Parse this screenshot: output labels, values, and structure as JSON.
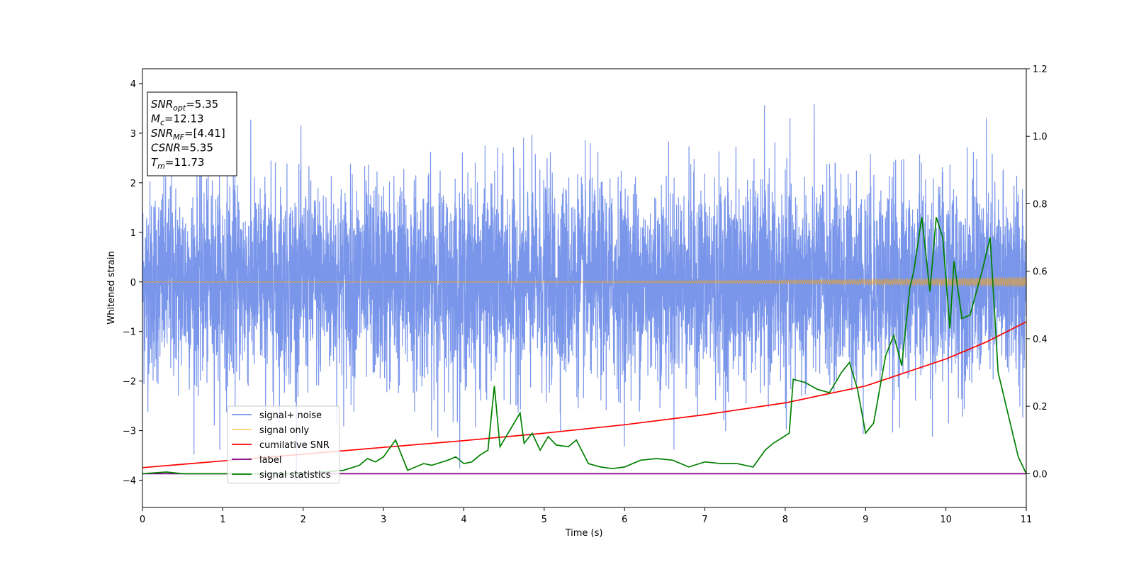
{
  "chart_data": {
    "type": "line",
    "title": "",
    "xlabel": "Time (s)",
    "ylabel": "Whitened strain",
    "xlim": [
      0,
      11
    ],
    "ylim": [
      -4.55,
      4.3
    ],
    "y2lim": [
      -0.1,
      1.2
    ],
    "xticks": [
      0,
      1,
      2,
      3,
      4,
      5,
      6,
      7,
      8,
      9,
      10,
      11
    ],
    "yticks": [
      -4,
      -3,
      -2,
      -1,
      0,
      1,
      2,
      3,
      4
    ],
    "y2ticks": [
      "0.0",
      "0.2",
      "0.4",
      "0.6",
      "0.8",
      "1.0",
      "1.2"
    ],
    "y2tick_values": [
      0.0,
      0.2,
      0.4,
      0.6,
      0.8,
      1.0,
      1.2
    ],
    "grid": false,
    "legend_position": "lower-left",
    "annotation": {
      "lines": [
        {
          "sym": "SNR",
          "sub": "opt",
          "val": "=5.35"
        },
        {
          "sym": "M",
          "sub": "c",
          "val": "=12.13"
        },
        {
          "sym": "SNR",
          "sub": "MF",
          "val": "=[4.41]"
        },
        {
          "sym": "CSNR",
          "sub": "",
          "val": "=5.35"
        },
        {
          "sym": "T",
          "sub": "m",
          "val": "=11.73"
        }
      ]
    },
    "series": [
      {
        "name": "signal+ noise",
        "color": "#4169e1",
        "axis": "left",
        "kind": "noise",
        "std": 1.0,
        "range": [
          -4.15,
          3.92
        ]
      },
      {
        "name": "signal only",
        "color": "#ffa500",
        "axis": "left",
        "kind": "chirp",
        "amp_start": 0.01,
        "amp_end": 0.1
      },
      {
        "name": "cumilative SNR",
        "color": "#ff0000",
        "axis": "right",
        "x": [
          0,
          1,
          2,
          3,
          4,
          5,
          6,
          7,
          8,
          9,
          9.5,
          10,
          10.5,
          11
        ],
        "values": [
          0.018,
          0.038,
          0.058,
          0.078,
          0.098,
          0.12,
          0.145,
          0.175,
          0.21,
          0.26,
          0.3,
          0.34,
          0.39,
          0.45
        ]
      },
      {
        "name": "label",
        "color": "#800080",
        "axis": "right",
        "x": [
          0,
          11
        ],
        "values": [
          0.0,
          0.0
        ]
      },
      {
        "name": "signal statistics",
        "color": "#008000",
        "axis": "right",
        "x": [
          0,
          0.3,
          0.5,
          1.0,
          1.5,
          2.0,
          2.5,
          2.7,
          2.8,
          2.9,
          3.0,
          3.15,
          3.3,
          3.4,
          3.5,
          3.6,
          3.8,
          3.9,
          4.0,
          4.1,
          4.2,
          4.3,
          4.38,
          4.45,
          4.6,
          4.7,
          4.75,
          4.85,
          4.95,
          5.05,
          5.15,
          5.3,
          5.4,
          5.55,
          5.7,
          5.85,
          6.0,
          6.2,
          6.4,
          6.6,
          6.8,
          7.0,
          7.2,
          7.4,
          7.6,
          7.75,
          7.85,
          8.05,
          8.1,
          8.25,
          8.4,
          8.55,
          8.7,
          8.8,
          8.9,
          9.0,
          9.1,
          9.25,
          9.35,
          9.45,
          9.55,
          9.6,
          9.7,
          9.8,
          9.88,
          9.96,
          10.05,
          10.1,
          10.2,
          10.3,
          10.45,
          10.55,
          10.65,
          10.75,
          10.9,
          11.0
        ],
        "values": [
          0.0,
          0.005,
          0.0,
          0.0,
          0.0,
          0.0,
          0.01,
          0.025,
          0.045,
          0.035,
          0.05,
          0.1,
          0.01,
          0.02,
          0.03,
          0.025,
          0.04,
          0.05,
          0.03,
          0.035,
          0.055,
          0.07,
          0.26,
          0.08,
          0.14,
          0.18,
          0.09,
          0.12,
          0.07,
          0.11,
          0.085,
          0.08,
          0.1,
          0.03,
          0.02,
          0.015,
          0.02,
          0.04,
          0.045,
          0.04,
          0.02,
          0.035,
          0.03,
          0.03,
          0.02,
          0.07,
          0.09,
          0.12,
          0.28,
          0.27,
          0.25,
          0.24,
          0.3,
          0.33,
          0.25,
          0.12,
          0.15,
          0.35,
          0.41,
          0.32,
          0.55,
          0.6,
          0.76,
          0.54,
          0.76,
          0.7,
          0.43,
          0.63,
          0.46,
          0.47,
          0.6,
          0.7,
          0.3,
          0.2,
          0.05,
          0.0
        ]
      }
    ]
  }
}
